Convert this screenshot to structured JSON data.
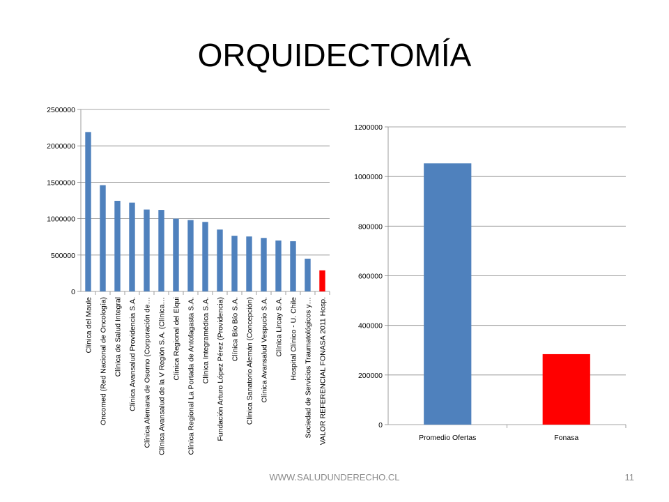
{
  "slide": {
    "title": "ORQUIDECTOMÍA",
    "footer": "WWW.SALUDUNDERECHO.CL",
    "page_number": "11"
  },
  "colors": {
    "blue": "#4f81bd",
    "red": "#ff0000",
    "axis": "#868686",
    "grid": "#868686"
  },
  "chart_data": [
    {
      "type": "bar",
      "title": "",
      "xlabel": "",
      "ylabel": "",
      "ylim": [
        0,
        2500000
      ],
      "yticks": [
        0,
        500000,
        1000000,
        1500000,
        2000000,
        2500000
      ],
      "grid": true,
      "categories": [
        "Clínica del Maule",
        "Oncomed (Red Nacional de Oncología)",
        "Clínica de Salud Integral",
        "Clínica Avansalud Providencia S.A.",
        "Clínica Alemana de Osorno (Corporación de…",
        "Clínica Avansalud de la V Región S.A. (Clínica…",
        "Clínica Regional del Elqui",
        "Clínica Regional La Portada de Antofagasta S.A.",
        "Clínica Integramédica S.A.",
        "Fundación Arturo López Pérez (Providencia)",
        "Clínica Bío Bío S.A.",
        "Clínica Sanatorio Alemán (Concepción)",
        "Clínica Avansalud Vespucio S.A.",
        "Clínica Lircay S.A.",
        "Hospital Clínico - U. Chile",
        "Sociedad de Servicios Traumatológicos y…",
        "VALOR REFERENCIAL FONASA 2011 Hosp."
      ],
      "values": [
        2190000,
        1460000,
        1245000,
        1220000,
        1125000,
        1120000,
        1000000,
        980000,
        955000,
        850000,
        765000,
        755000,
        735000,
        700000,
        690000,
        450000,
        290000
      ],
      "highlight_index": 16
    },
    {
      "type": "bar",
      "title": "",
      "xlabel": "",
      "ylabel": "",
      "ylim": [
        0,
        1200000
      ],
      "yticks": [
        0,
        200000,
        400000,
        600000,
        800000,
        1000000,
        1200000
      ],
      "grid": true,
      "categories": [
        "Promedio Ofertas",
        "Fonasa"
      ],
      "values": [
        1053000,
        284000
      ],
      "highlight_index": 1
    }
  ]
}
